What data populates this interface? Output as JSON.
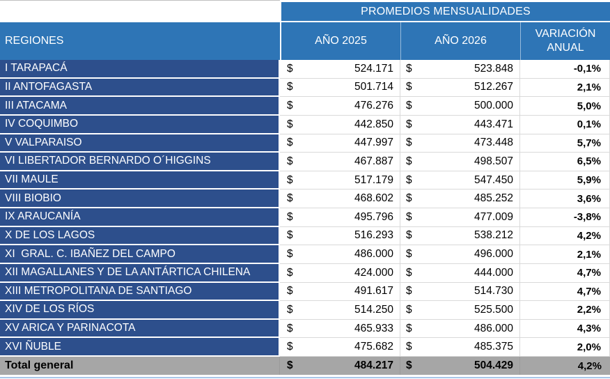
{
  "table": {
    "title": "PROMEDIOS MENSUALIDADES",
    "currency": "$",
    "columns": {
      "regiones": "REGIONES",
      "ano_2025": "AÑO 2025",
      "ano_2026": "AÑO 2026",
      "variacion": "VARIACIÓN ANUAL"
    },
    "rows": [
      {
        "region": "I TARAPACÁ",
        "y2025": "524.171",
        "y2026": "523.848",
        "var": "-0,1%"
      },
      {
        "region": "II ANTOFAGASTA",
        "y2025": "501.714",
        "y2026": "512.267",
        "var": "2,1%"
      },
      {
        "region": "III ATACAMA",
        "y2025": "476.276",
        "y2026": "500.000",
        "var": "5,0%"
      },
      {
        "region": "IV COQUIMBO",
        "y2025": "442.850",
        "y2026": "443.471",
        "var": "0,1%"
      },
      {
        "region": "V VALPARAISO",
        "y2025": "447.997",
        "y2026": "473.448",
        "var": "5,7%"
      },
      {
        "region": "VI LIBERTADOR BERNARDO O´HIGGINS",
        "y2025": "467.887",
        "y2026": "498.507",
        "var": "6,5%"
      },
      {
        "region": "VII MAULE",
        "y2025": "517.179",
        "y2026": "547.450",
        "var": "5,9%"
      },
      {
        "region": "VIII BIOBIO",
        "y2025": "468.602",
        "y2026": "485.252",
        "var": "3,6%"
      },
      {
        "region": "IX ARAUCANÍA",
        "y2025": "495.796",
        "y2026": "477.009",
        "var": "-3,8%"
      },
      {
        "region": "X DE LOS LAGOS",
        "y2025": "516.293",
        "y2026": "538.212",
        "var": "4,2%"
      },
      {
        "region": "XI  GRAL. C. IBAÑEZ DEL CAMPO",
        "y2025": "486.000",
        "y2026": "496.000",
        "var": "2,1%"
      },
      {
        "region": "XII MAGALLANES Y DE LA ANTÁRTICA CHILENA",
        "y2025": "424.000",
        "y2026": "444.000",
        "var": "4,7%"
      },
      {
        "region": "XIII METROPOLITANA DE SANTIAGO",
        "y2025": "491.617",
        "y2026": "514.730",
        "var": "4,7%"
      },
      {
        "region": "XIV DE LOS RÍOS",
        "y2025": "514.250",
        "y2026": "525.500",
        "var": "2,2%"
      },
      {
        "region": "XV ARICA Y PARINACOTA",
        "y2025": "465.933",
        "y2026": "486.000",
        "var": "4,3%"
      },
      {
        "region": "XVI ÑUBLE",
        "y2025": "475.682",
        "y2026": "485.375",
        "var": "2,0%"
      }
    ],
    "total": {
      "label": "Total general",
      "y2025": "484.217",
      "y2026": "504.429",
      "var": "4,2%"
    },
    "colors": {
      "header_blue": "#2E75B6",
      "region_navy": "#2D4F8C",
      "total_gray": "#A6A6A6",
      "gridline_gray": "#D9D9D9",
      "bottom_rule_blue": "#A9C6E8",
      "text_on_blue": "#FFFFFF",
      "text_on_white": "#000000"
    }
  }
}
